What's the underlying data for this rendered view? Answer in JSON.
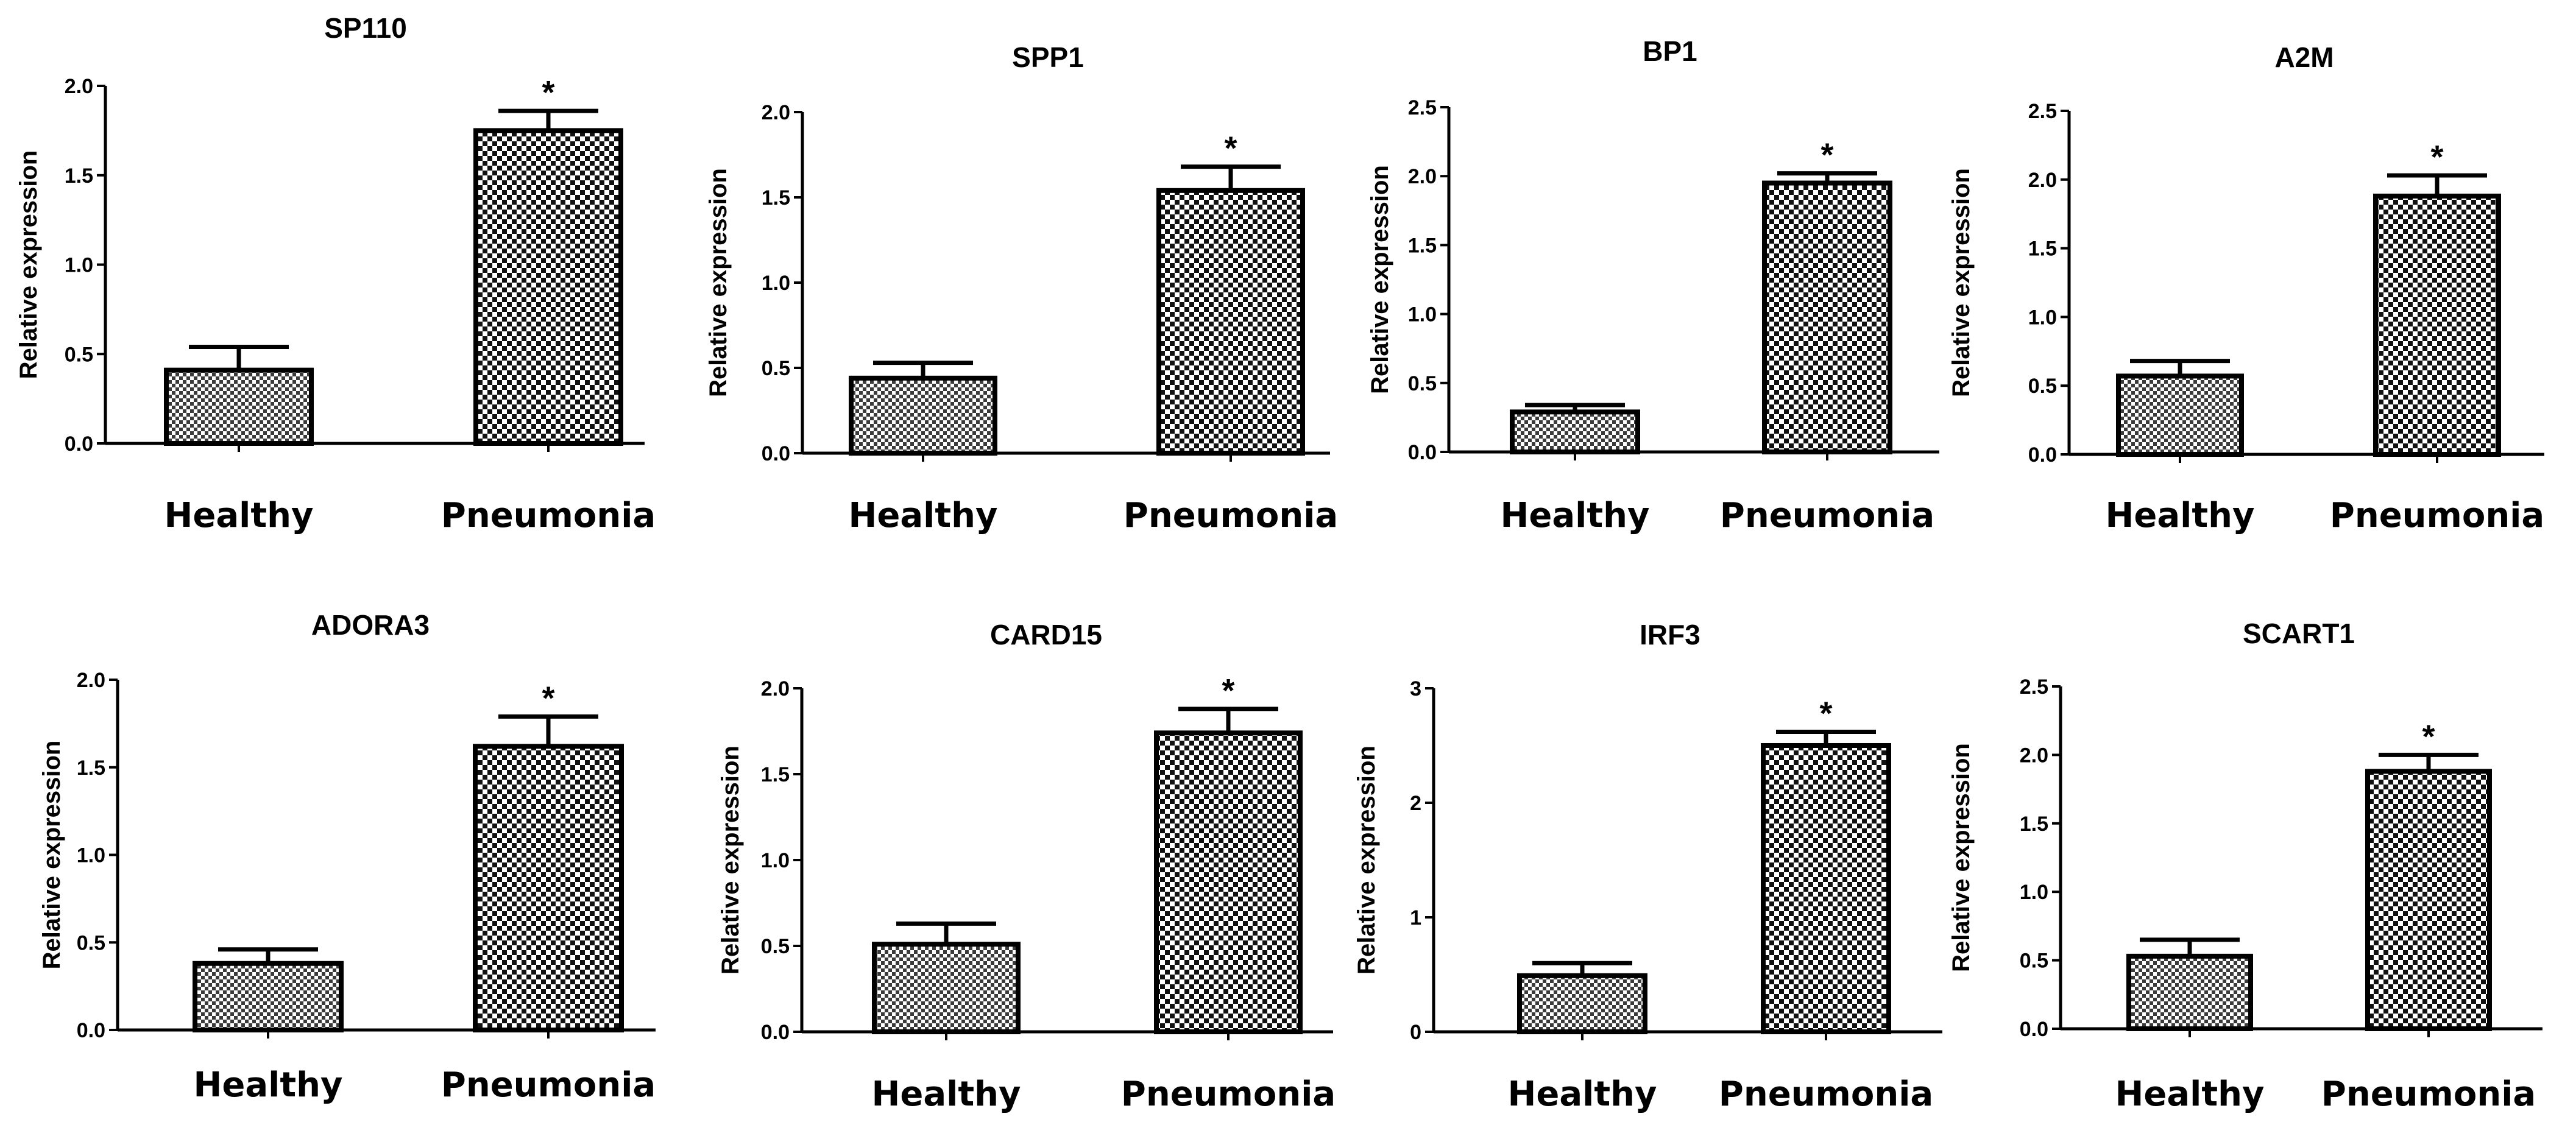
{
  "chart_data": [
    {
      "type": "bar",
      "title": "SP110",
      "ylabel": "Relative expression",
      "categories": [
        "Healthy",
        "Pneumonia"
      ],
      "values": [
        0.41,
        1.75
      ],
      "errors": [
        0.13,
        0.11
      ],
      "ylim": [
        0,
        2.0
      ],
      "yticks": [
        "0.0",
        "0.5",
        "1.0",
        "1.5",
        "2.0"
      ],
      "tick_values": [
        0,
        0.5,
        1.0,
        1.5,
        2.0
      ],
      "significance": [
        "",
        "*"
      ]
    },
    {
      "type": "bar",
      "title": "SPP1",
      "ylabel": "Relative expression",
      "categories": [
        "Healthy",
        "Pneumonia"
      ],
      "values": [
        0.44,
        1.54
      ],
      "errors": [
        0.09,
        0.14
      ],
      "ylim": [
        0,
        2.0
      ],
      "yticks": [
        "0.0",
        "0.5",
        "1.0",
        "1.5",
        "2.0"
      ],
      "tick_values": [
        0,
        0.5,
        1.0,
        1.5,
        2.0
      ],
      "significance": [
        "",
        "*"
      ]
    },
    {
      "type": "bar",
      "title": "BP1",
      "ylabel": "Relative expression",
      "categories": [
        "Healthy",
        "Pneumonia"
      ],
      "values": [
        0.29,
        1.95
      ],
      "errors": [
        0.05,
        0.07
      ],
      "ylim": [
        0,
        2.5
      ],
      "yticks": [
        "0.0",
        "0.5",
        "1.0",
        "1.5",
        "2.0",
        "2.5"
      ],
      "tick_values": [
        0,
        0.5,
        1.0,
        1.5,
        2.0,
        2.5
      ],
      "significance": [
        "",
        "*"
      ]
    },
    {
      "type": "bar",
      "title": "A2M",
      "ylabel": "Relative expression",
      "categories": [
        "Healthy",
        "Pneumonia"
      ],
      "values": [
        0.57,
        1.88
      ],
      "errors": [
        0.11,
        0.15
      ],
      "ylim": [
        0,
        2.5
      ],
      "yticks": [
        "0.0",
        "0.5",
        "1.0",
        "1.5",
        "2.0",
        "2.5"
      ],
      "tick_values": [
        0,
        0.5,
        1.0,
        1.5,
        2.0,
        2.5
      ],
      "significance": [
        "",
        "*"
      ]
    },
    {
      "type": "bar",
      "title": "ADORA3",
      "ylabel": "Relative expression",
      "categories": [
        "Healthy",
        "Pneumonia"
      ],
      "values": [
        0.38,
        1.62
      ],
      "errors": [
        0.08,
        0.17
      ],
      "ylim": [
        0,
        2.0
      ],
      "yticks": [
        "0.0",
        "0.5",
        "1.0",
        "1.5",
        "2.0"
      ],
      "tick_values": [
        0,
        0.5,
        1.0,
        1.5,
        2.0
      ],
      "significance": [
        "",
        "*"
      ]
    },
    {
      "type": "bar",
      "title": "CARD15",
      "ylabel": "Relative expression",
      "categories": [
        "Healthy",
        "Pneumonia"
      ],
      "values": [
        0.51,
        1.74
      ],
      "errors": [
        0.12,
        0.14
      ],
      "ylim": [
        0,
        2.0
      ],
      "yticks": [
        "0.0",
        "0.5",
        "1.0",
        "1.5",
        "2.0"
      ],
      "tick_values": [
        0,
        0.5,
        1.0,
        1.5,
        2.0
      ],
      "significance": [
        "",
        "*"
      ]
    },
    {
      "type": "bar",
      "title": "IRF3",
      "ylabel": "Relative expression",
      "categories": [
        "Healthy",
        "Pneumonia"
      ],
      "values": [
        0.49,
        2.5
      ],
      "errors": [
        0.11,
        0.12
      ],
      "ylim": [
        0,
        3
      ],
      "yticks": [
        "0",
        "1",
        "2",
        "3"
      ],
      "tick_values": [
        0,
        1,
        2,
        3
      ],
      "significance": [
        "",
        "*"
      ]
    },
    {
      "type": "bar",
      "title": "SCART1",
      "ylabel": "Relative expression",
      "categories": [
        "Healthy",
        "Pneumonia"
      ],
      "values": [
        0.53,
        1.88
      ],
      "errors": [
        0.12,
        0.12
      ],
      "ylim": [
        0,
        2.5
      ],
      "yticks": [
        "0.0",
        "0.5",
        "1.0",
        "1.5",
        "2.0",
        "2.5"
      ],
      "tick_values": [
        0,
        0.5,
        1.0,
        1.5,
        2.0,
        2.5
      ],
      "significance": [
        "",
        "*"
      ]
    }
  ],
  "colors": {
    "bar_stroke": "#000000",
    "bar_fill_light": "#ffffff",
    "bar_fill_dark": "#111111"
  }
}
